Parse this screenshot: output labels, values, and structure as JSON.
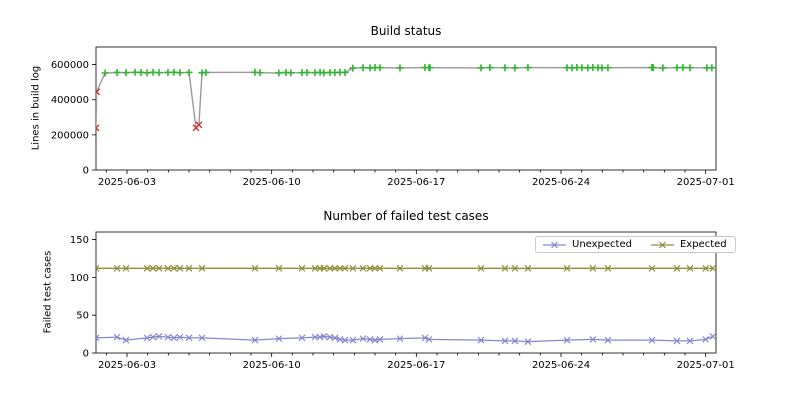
{
  "figure": {
    "background": "#ffffff",
    "text_color": "#000000"
  },
  "chart_data": [
    {
      "type": "line",
      "title": "Build status",
      "ylabel": "Lines in build log",
      "xlim_days": [
        0,
        30
      ],
      "xticks": [
        {
          "day": 1.5,
          "label": "2025-06-03"
        },
        {
          "day": 8.5,
          "label": "2025-06-10"
        },
        {
          "day": 15.5,
          "label": "2025-06-17"
        },
        {
          "day": 22.5,
          "label": "2025-06-24"
        },
        {
          "day": 29.5,
          "label": "2025-07-01"
        }
      ],
      "minor_xtick_days": 1,
      "ylim": [
        0,
        700000
      ],
      "yticks": [
        {
          "v": 0,
          "label": "0"
        },
        {
          "v": 200000,
          "label": "200000"
        },
        {
          "v": 400000,
          "label": "400000"
        },
        {
          "v": 600000,
          "label": "600000"
        }
      ],
      "grid": false,
      "line_color": "#9b9b9b",
      "success_color": "#33b333",
      "fail_color": "#cc3333",
      "success_marker": "plus",
      "fail_marker": "x",
      "points": [
        [
          0.0,
          240000,
          "f"
        ],
        [
          0.03,
          445000,
          "f"
        ],
        [
          0.44,
          552000,
          "s"
        ],
        [
          1.02,
          555000,
          "s"
        ],
        [
          1.45,
          554000,
          "s"
        ],
        [
          1.89,
          556000,
          "s"
        ],
        [
          2.18,
          555000,
          "s"
        ],
        [
          2.47,
          553000,
          "s"
        ],
        [
          2.76,
          556000,
          "s"
        ],
        [
          3.05,
          554000,
          "s"
        ],
        [
          3.48,
          555000,
          "s"
        ],
        [
          3.77,
          556000,
          "s"
        ],
        [
          4.06,
          554000,
          "s"
        ],
        [
          4.5,
          555000,
          "s"
        ],
        [
          4.84,
          240000,
          "f"
        ],
        [
          4.98,
          257000,
          "f"
        ],
        [
          5.13,
          553000,
          "s"
        ],
        [
          5.32,
          555000,
          "s"
        ],
        [
          7.69,
          556000,
          "s"
        ],
        [
          7.93,
          554000,
          "s"
        ],
        [
          8.85,
          552000,
          "s"
        ],
        [
          9.19,
          555000,
          "s"
        ],
        [
          9.43,
          553000,
          "s"
        ],
        [
          9.97,
          554000,
          "s"
        ],
        [
          10.21,
          555000,
          "s"
        ],
        [
          10.6,
          554000,
          "s"
        ],
        [
          10.84,
          556000,
          "s"
        ],
        [
          11.03,
          553000,
          "s"
        ],
        [
          11.32,
          555000,
          "s"
        ],
        [
          11.56,
          554000,
          "s"
        ],
        [
          11.8,
          556000,
          "s"
        ],
        [
          12.05,
          555000,
          "s"
        ],
        [
          12.43,
          580000,
          "s"
        ],
        [
          12.92,
          582000,
          "s"
        ],
        [
          13.26,
          581000,
          "s"
        ],
        [
          13.5,
          583000,
          "s"
        ],
        [
          13.74,
          582000,
          "s"
        ],
        [
          14.71,
          581000,
          "s"
        ],
        [
          15.92,
          583000,
          "s"
        ],
        [
          16.11,
          582000,
          "s"
        ],
        [
          16.16,
          582000,
          "s"
        ],
        [
          18.63,
          581000,
          "s"
        ],
        [
          19.06,
          583000,
          "s"
        ],
        [
          19.79,
          582000,
          "s"
        ],
        [
          20.27,
          581000,
          "s"
        ],
        [
          20.9,
          583000,
          "s"
        ],
        [
          22.79,
          582000,
          "s"
        ],
        [
          23.03,
          581000,
          "s"
        ],
        [
          23.27,
          583000,
          "s"
        ],
        [
          23.51,
          582000,
          "s"
        ],
        [
          23.8,
          581000,
          "s"
        ],
        [
          24.04,
          583000,
          "s"
        ],
        [
          24.29,
          582000,
          "s"
        ],
        [
          24.48,
          581000,
          "s"
        ],
        [
          24.77,
          582000,
          "s"
        ],
        [
          26.9,
          583000,
          "s"
        ],
        [
          26.96,
          582000,
          "s"
        ],
        [
          27.43,
          581000,
          "s"
        ],
        [
          28.11,
          582000,
          "s"
        ],
        [
          28.4,
          583000,
          "s"
        ],
        [
          28.74,
          582000,
          "s"
        ],
        [
          29.56,
          581000,
          "s"
        ],
        [
          29.8,
          582000,
          "s"
        ]
      ]
    },
    {
      "type": "line",
      "title": "Number of failed test cases",
      "ylabel": "Failed test cases",
      "xlim_days": [
        0,
        30
      ],
      "xticks": [
        {
          "day": 1.5,
          "label": "2025-06-03"
        },
        {
          "day": 8.5,
          "label": "2025-06-10"
        },
        {
          "day": 15.5,
          "label": "2025-06-17"
        },
        {
          "day": 22.5,
          "label": "2025-06-24"
        },
        {
          "day": 29.5,
          "label": "2025-07-01"
        }
      ],
      "minor_xtick_days": 1,
      "ylim": [
        0,
        160
      ],
      "yticks": [
        {
          "v": 0,
          "label": "0"
        },
        {
          "v": 50,
          "label": "50"
        },
        {
          "v": 100,
          "label": "100"
        },
        {
          "v": 150,
          "label": "150"
        }
      ],
      "grid": false,
      "legend": {
        "position": "upper right"
      },
      "x_days": [
        0.0,
        1.02,
        1.45,
        2.47,
        2.76,
        3.05,
        3.48,
        3.77,
        4.06,
        4.5,
        5.13,
        7.69,
        8.85,
        9.97,
        10.6,
        10.84,
        11.03,
        11.32,
        11.56,
        11.8,
        12.05,
        12.43,
        12.92,
        13.26,
        13.5,
        13.74,
        14.71,
        15.92,
        16.11,
        18.63,
        19.79,
        20.27,
        20.9,
        22.79,
        24.04,
        24.77,
        26.9,
        28.11,
        28.74,
        29.5,
        29.85
      ],
      "series": [
        {
          "name": "Unexpected",
          "color": "#8787cf",
          "marker": "x",
          "values": [
            20,
            21,
            17,
            20,
            21,
            22,
            21,
            20,
            21,
            20,
            20,
            17,
            19,
            20,
            21,
            21,
            22,
            21,
            20,
            18,
            17,
            17,
            19,
            18,
            17,
            18,
            19,
            20,
            18,
            17,
            16,
            16,
            15,
            17,
            18,
            17,
            17,
            16,
            16,
            18,
            22
          ]
        },
        {
          "name": "Expected",
          "color": "#8f8f3c",
          "marker": "x",
          "values": [
            112,
            112,
            112,
            112,
            112,
            112,
            112,
            112,
            112,
            112,
            112,
            112,
            112,
            112,
            112,
            112,
            112,
            112,
            112,
            112,
            112,
            112,
            112,
            112,
            112,
            112,
            112,
            112,
            112,
            112,
            112,
            112,
            112,
            112,
            112,
            112,
            112,
            112,
            112,
            112,
            112
          ]
        }
      ]
    }
  ]
}
